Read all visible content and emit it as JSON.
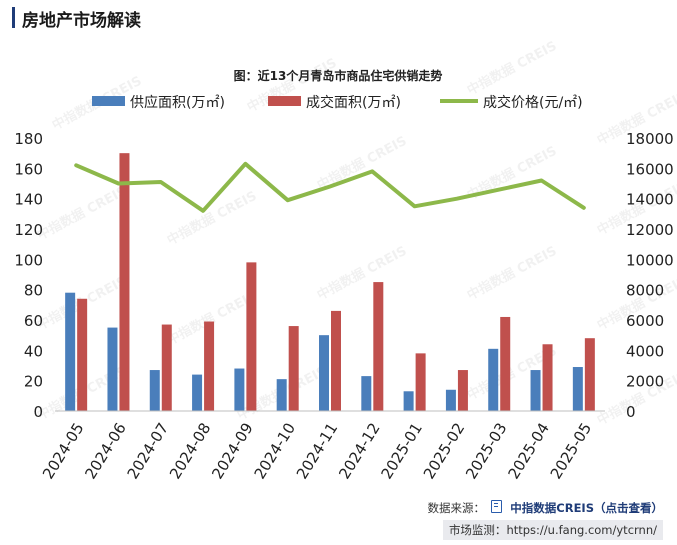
{
  "header": {
    "title": "房地产市场解读"
  },
  "watermark": "中指数据 CREIS",
  "footer": {
    "source_label": "数据来源：",
    "source_name": "中指数据CREIS",
    "source_hint": "（点击查看）",
    "monitor_label": "市场监测：",
    "monitor_url": "https://u.fang.com/ytcrnn/"
  },
  "colors": {
    "supply": "#4a7ebb",
    "transaction": "#c0504d",
    "price": "#8db84a",
    "accent": "#1f3c78"
  },
  "chart_data": {
    "type": "bar",
    "title": "图：近13个月青岛市商品住宅供销走势",
    "categories": [
      "2024-05",
      "2024-06",
      "2024-07",
      "2024-08",
      "2024-09",
      "2024-10",
      "2024-11",
      "2024-12",
      "2025-01",
      "2025-02",
      "2025-03",
      "2025-04",
      "2025-05"
    ],
    "series": [
      {
        "name": "供应面积(万㎡)",
        "type": "bar",
        "axis": "left",
        "values": [
          78,
          55,
          27,
          24,
          28,
          21,
          50,
          23,
          13,
          14,
          41,
          27,
          29
        ]
      },
      {
        "name": "成交面积(万㎡)",
        "type": "bar",
        "axis": "left",
        "values": [
          74,
          170,
          57,
          59,
          98,
          56,
          66,
          85,
          38,
          27,
          62,
          44,
          48
        ]
      },
      {
        "name": "成交价格(元/㎡)",
        "type": "line",
        "axis": "right",
        "values": [
          16200,
          15000,
          15100,
          13200,
          16300,
          13900,
          14800,
          15800,
          13500,
          14000,
          14600,
          15200,
          13400
        ]
      }
    ],
    "left_axis": {
      "ylim": [
        0,
        180
      ],
      "ticks": [
        0,
        20,
        40,
        60,
        80,
        100,
        120,
        140,
        160,
        180
      ]
    },
    "right_axis": {
      "ylim": [
        0,
        18000
      ],
      "ticks": [
        0,
        2000,
        4000,
        6000,
        8000,
        10000,
        12000,
        14000,
        16000,
        18000
      ]
    },
    "legend_position": "top",
    "grid": false
  }
}
